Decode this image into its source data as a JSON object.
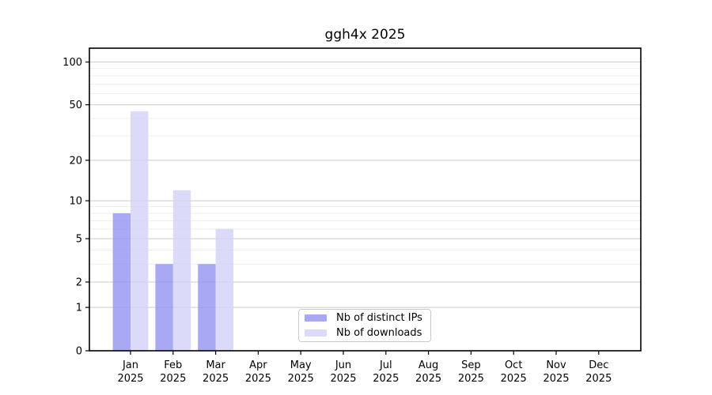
{
  "chart_data": {
    "type": "bar",
    "title": "ggh4x 2025",
    "year": "2025",
    "categories": [
      "Jan",
      "Feb",
      "Mar",
      "Apr",
      "May",
      "Jun",
      "Jul",
      "Aug",
      "Sep",
      "Oct",
      "Nov",
      "Dec"
    ],
    "series": [
      {
        "name": "Nb of distinct IPs",
        "color": "#a8a8f3",
        "values": [
          8,
          3,
          3,
          0,
          0,
          0,
          0,
          0,
          0,
          0,
          0,
          0
        ]
      },
      {
        "name": "Nb of downloads",
        "color": "#dbdbf9",
        "values": [
          45,
          12,
          6,
          0,
          0,
          0,
          0,
          0,
          0,
          0,
          0,
          0
        ]
      }
    ],
    "y_scale": "log10(1+value)",
    "ylim": [
      0,
      125
    ],
    "y_major_ticks": [
      0,
      1,
      2,
      5,
      10,
      20,
      50,
      100
    ],
    "y_minor_ticks": [
      3,
      4,
      6,
      7,
      8,
      9,
      30,
      40,
      60,
      70,
      80,
      90
    ],
    "grid": true,
    "legend_position": "bottom-center-inside",
    "colors": {
      "major_grid": "#cbcbcb",
      "minor_grid": "#ededed",
      "axis": "#000000",
      "text": "#000000",
      "background": "#ffffff"
    }
  }
}
